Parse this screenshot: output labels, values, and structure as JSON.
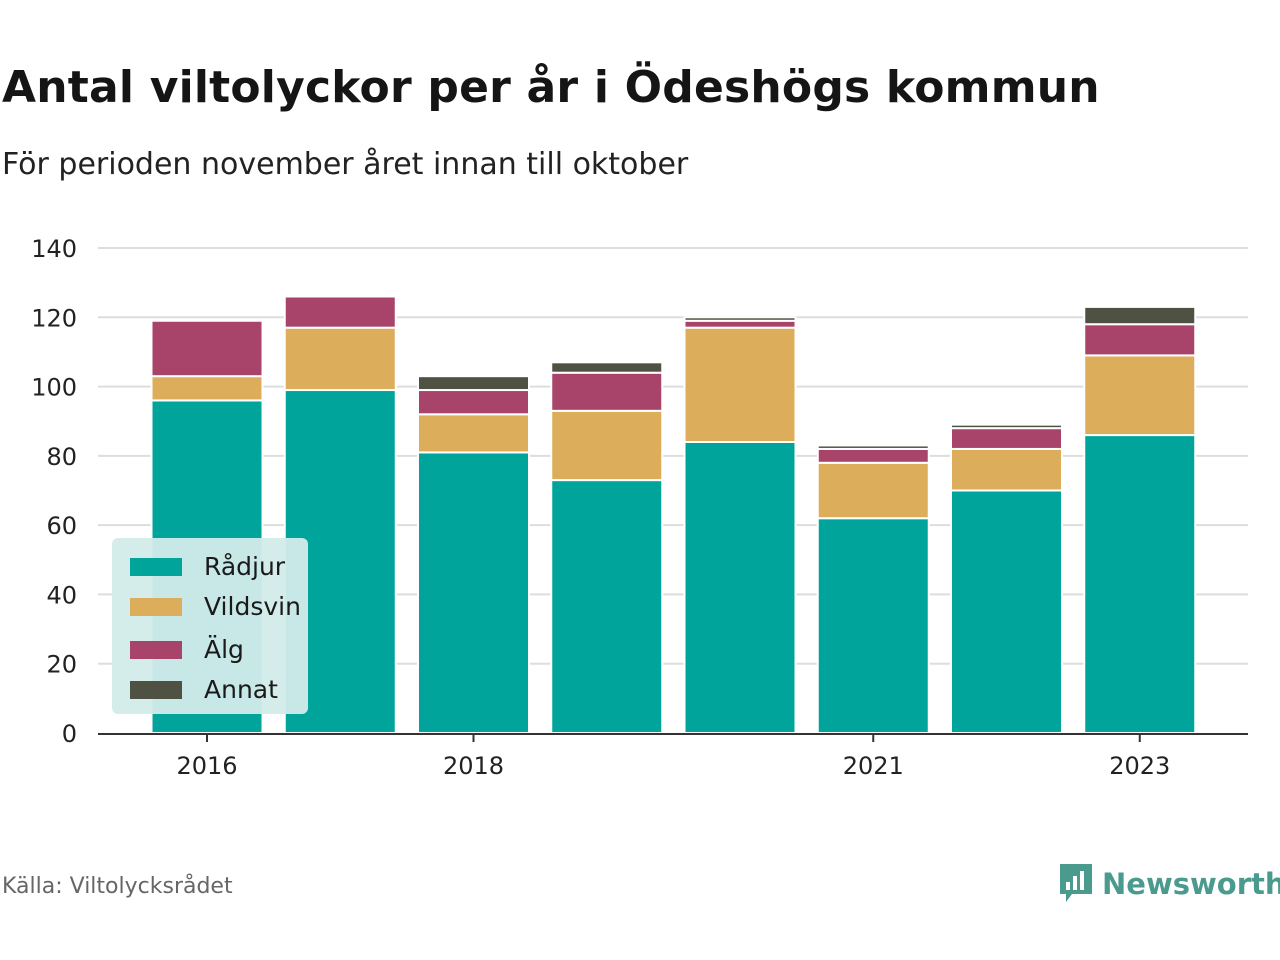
{
  "title": "Antal viltolyckor per år i Ödeshögs kommun",
  "subtitle": "För perioden november året innan till oktober",
  "source": "Källa: Viltolycksrådet",
  "brand": {
    "name": "Newsworthy",
    "icon": "newsworthy-logo-icon",
    "color": "#4a9a8e"
  },
  "chart_data": {
    "type": "bar",
    "stacked": true,
    "categories": [
      "2016",
      "2017",
      "2018",
      "2019",
      "2020",
      "2021",
      "2022",
      "2023"
    ],
    "x_tick_labels": [
      "2016",
      "",
      "2018",
      "",
      "",
      "2021",
      "",
      "2023"
    ],
    "series": [
      {
        "name": "Rådjur",
        "color": "#00a49a",
        "values": [
          96,
          99,
          81,
          73,
          84,
          62,
          70,
          86
        ]
      },
      {
        "name": "Vildsvin",
        "color": "#dcad5b",
        "values": [
          7,
          18,
          11,
          20,
          33,
          16,
          12,
          23
        ]
      },
      {
        "name": "Älg",
        "color": "#a8436a",
        "values": [
          16,
          9,
          7,
          11,
          2,
          4,
          6,
          9
        ]
      },
      {
        "name": "Annat",
        "color": "#4f5142",
        "values": [
          0,
          0,
          4,
          3,
          1,
          1,
          1,
          5
        ]
      }
    ],
    "ylim": [
      0,
      140
    ],
    "yticks": [
      0,
      20,
      40,
      60,
      80,
      100,
      120,
      140
    ],
    "grid": true,
    "legend_position": "bottom-left"
  }
}
